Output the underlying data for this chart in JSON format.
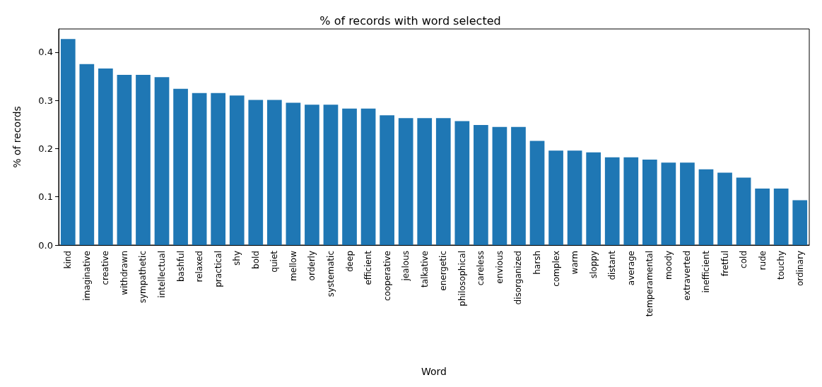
{
  "chart_data": {
    "type": "bar",
    "title": "% of records with word selected",
    "xlabel": "Word",
    "ylabel": "% of records",
    "categories": [
      "kind",
      "imaginative",
      "creative",
      "withdrawn",
      "sympathetic",
      "intellectual",
      "bashful",
      "relaxed",
      "practical",
      "shy",
      "bold",
      "quiet",
      "mellow",
      "orderly",
      "systematic",
      "deep",
      "efficient",
      "cooperative",
      "jealous",
      "talkative",
      "energetic",
      "philosophical",
      "careless",
      "envious",
      "disorganized",
      "harsh",
      "complex",
      "warm",
      "sloppy",
      "distant",
      "average",
      "temperamental",
      "moody",
      "extraverted",
      "inefficient",
      "fretful",
      "cold",
      "rude",
      "touchy",
      "ordinary"
    ],
    "values": [
      0.427,
      0.375,
      0.366,
      0.353,
      0.353,
      0.348,
      0.324,
      0.315,
      0.315,
      0.31,
      0.301,
      0.301,
      0.295,
      0.291,
      0.291,
      0.283,
      0.283,
      0.269,
      0.263,
      0.263,
      0.263,
      0.257,
      0.249,
      0.245,
      0.245,
      0.216,
      0.196,
      0.196,
      0.192,
      0.182,
      0.182,
      0.177,
      0.171,
      0.171,
      0.157,
      0.15,
      0.14,
      0.117,
      0.117,
      0.093
    ],
    "color": "#1f77b4",
    "ylim": [
      0,
      0.448
    ],
    "yticks": [
      {
        "value": 0,
        "label": "0.0"
      },
      {
        "value": 0.1,
        "label": "0.1"
      },
      {
        "value": 0.2,
        "label": "0.2"
      },
      {
        "value": 0.3,
        "label": "0.3"
      },
      {
        "value": 0.4,
        "label": "0.4"
      }
    ],
    "grid": false
  }
}
